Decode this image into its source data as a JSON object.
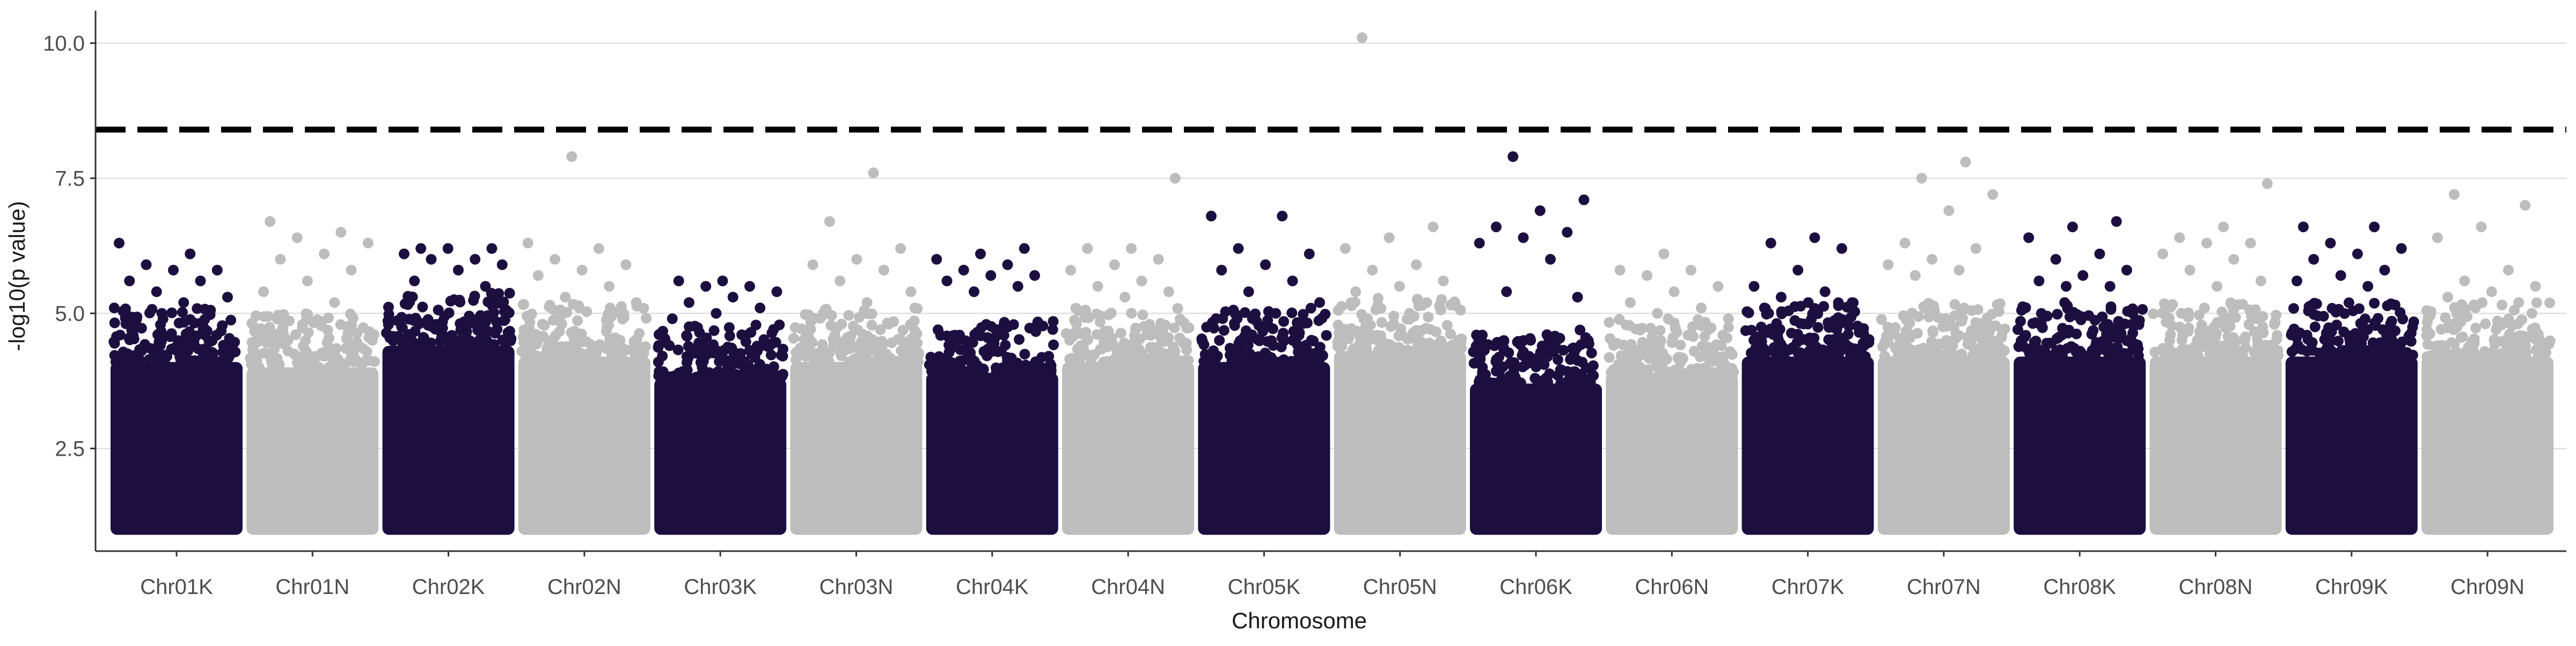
{
  "chart_data": {
    "type": "scatter",
    "subtype": "manhattan",
    "title": "",
    "xlabel": "Chromosome",
    "ylabel": "-log10(p value)",
    "ylim": [
      0.6,
      10.6
    ],
    "yticks": [
      2.5,
      5.0,
      7.5,
      10.0
    ],
    "ytick_labels": [
      "2.5",
      "5.0",
      "7.5",
      "10.0"
    ],
    "grid": "horizontal-major",
    "legend": "none",
    "threshold": 8.4,
    "threshold_style": "dashed",
    "colors": {
      "dark": "#1c0f40",
      "light": "#bdbdbd",
      "threshold": "#000000",
      "grid": "#d9d9d9"
    },
    "chromosomes": [
      {
        "name": "Chr01K",
        "color": "dark",
        "base": 4.7,
        "top": [
          6.3,
          6.1,
          5.9,
          5.8,
          5.8,
          5.6,
          5.6,
          5.4,
          5.3,
          5.2
        ]
      },
      {
        "name": "Chr01N",
        "color": "light",
        "base": 4.6,
        "top": [
          6.7,
          6.5,
          6.4,
          6.3,
          6.1,
          6.0,
          5.8,
          5.6,
          5.4,
          5.2
        ]
      },
      {
        "name": "Chr02K",
        "color": "dark",
        "base": 5.0,
        "top": [
          6.2,
          6.2,
          6.2,
          6.1,
          6.0,
          6.0,
          5.9,
          5.8,
          5.6,
          5.5
        ]
      },
      {
        "name": "Chr02N",
        "color": "light",
        "base": 4.8,
        "top": [
          7.9,
          6.3,
          6.2,
          6.0,
          5.9,
          5.8,
          5.7,
          5.5,
          5.3,
          5.2
        ]
      },
      {
        "name": "Chr03K",
        "color": "dark",
        "base": 4.4,
        "top": [
          5.6,
          5.6,
          5.5,
          5.5,
          5.4,
          5.3,
          5.2,
          5.1,
          5.0,
          4.9
        ]
      },
      {
        "name": "Chr03N",
        "color": "light",
        "base": 4.7,
        "top": [
          7.6,
          6.7,
          6.2,
          6.0,
          5.9,
          5.8,
          5.6,
          5.4,
          5.2,
          5.0
        ]
      },
      {
        "name": "Chr04K",
        "color": "dark",
        "base": 4.5,
        "top": [
          6.2,
          6.1,
          6.0,
          5.9,
          5.8,
          5.7,
          5.7,
          5.6,
          5.5,
          5.4
        ]
      },
      {
        "name": "Chr04N",
        "color": "light",
        "base": 4.7,
        "top": [
          7.5,
          6.2,
          6.2,
          6.0,
          5.9,
          5.8,
          5.6,
          5.5,
          5.4,
          5.3
        ]
      },
      {
        "name": "Chr05K",
        "color": "dark",
        "base": 4.7,
        "top": [
          6.8,
          6.8,
          6.2,
          6.1,
          5.9,
          5.8,
          5.6,
          5.4,
          5.2,
          5.0
        ]
      },
      {
        "name": "Chr05N",
        "color": "light",
        "base": 4.9,
        "top": [
          10.1,
          6.6,
          6.4,
          6.2,
          5.9,
          5.8,
          5.6,
          5.5,
          5.4,
          5.2
        ]
      },
      {
        "name": "Chr06K",
        "color": "dark",
        "base": 4.3,
        "top": [
          7.9,
          7.1,
          6.9,
          6.6,
          6.5,
          6.4,
          6.3,
          6.0,
          5.4,
          5.3
        ]
      },
      {
        "name": "Chr06N",
        "color": "light",
        "base": 4.5,
        "top": [
          6.1,
          5.8,
          5.8,
          5.7,
          5.5,
          5.4,
          5.2,
          5.1,
          5.0,
          4.9
        ]
      },
      {
        "name": "Chr07K",
        "color": "dark",
        "base": 4.8,
        "top": [
          6.4,
          6.3,
          6.2,
          5.8,
          5.5,
          5.4,
          5.3,
          5.2,
          5.2,
          5.1
        ]
      },
      {
        "name": "Chr07N",
        "color": "light",
        "base": 4.8,
        "top": [
          7.8,
          7.5,
          7.2,
          6.9,
          6.3,
          6.2,
          6.0,
          5.9,
          5.8,
          5.7
        ]
      },
      {
        "name": "Chr08K",
        "color": "dark",
        "base": 4.8,
        "top": [
          6.7,
          6.6,
          6.4,
          6.1,
          6.0,
          5.8,
          5.7,
          5.6,
          5.5,
          5.5
        ]
      },
      {
        "name": "Chr08N",
        "color": "light",
        "base": 4.8,
        "top": [
          7.4,
          6.6,
          6.4,
          6.3,
          6.3,
          6.1,
          6.0,
          5.8,
          5.6,
          5.5
        ]
      },
      {
        "name": "Chr09K",
        "color": "dark",
        "base": 4.8,
        "top": [
          6.6,
          6.6,
          6.3,
          6.2,
          6.1,
          6.0,
          5.8,
          5.7,
          5.6,
          5.5
        ]
      },
      {
        "name": "Chr09N",
        "color": "light",
        "base": 4.8,
        "top": [
          7.2,
          7.0,
          6.6,
          6.4,
          5.8,
          5.6,
          5.5,
          5.4,
          5.3,
          5.2
        ]
      }
    ]
  }
}
